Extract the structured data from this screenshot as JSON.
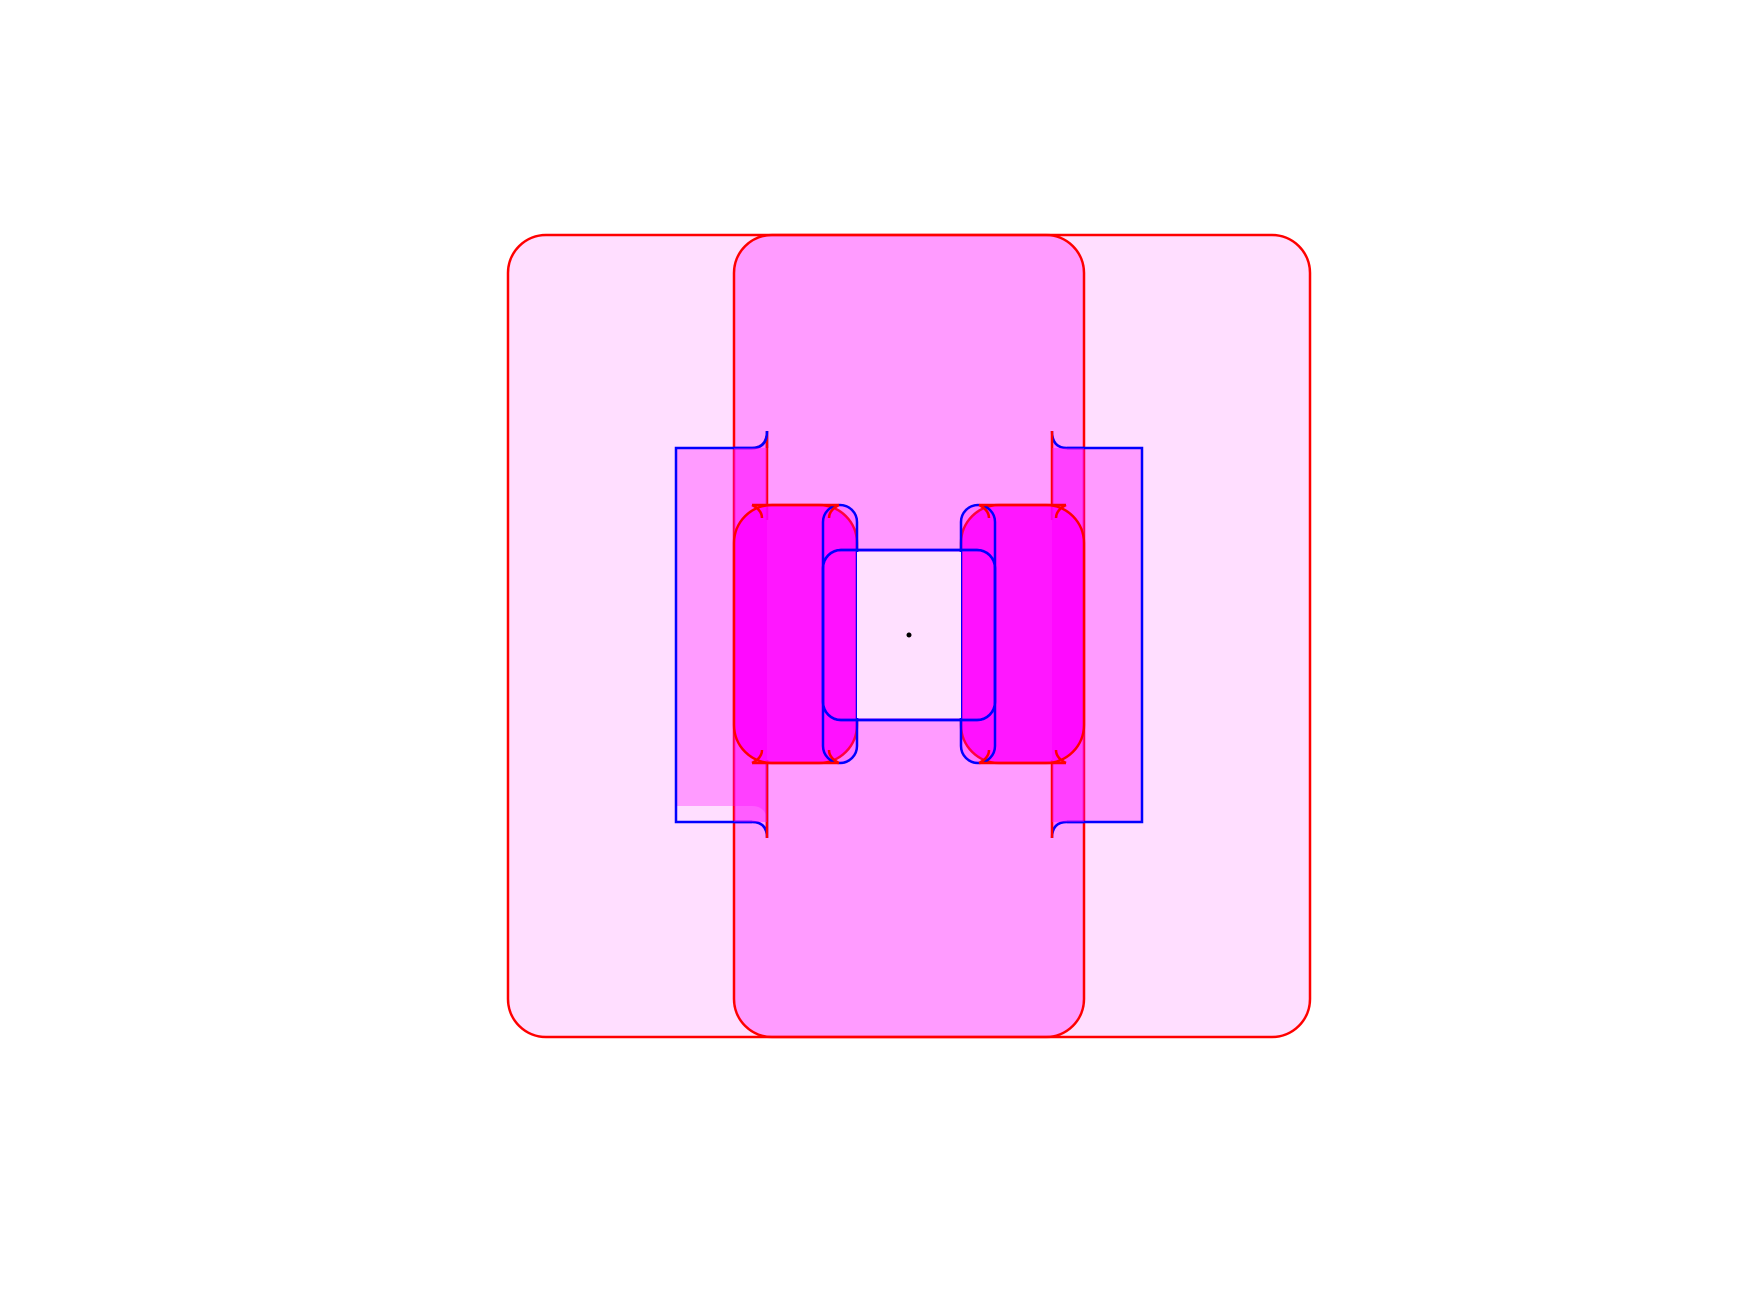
{
  "colors": {
    "background": "#ffffff",
    "red_stroke": "#ff0000",
    "blue_stroke": "#0000ff",
    "fill_light": "#ff00ff",
    "center_point": "#000000"
  },
  "shapes": [
    {
      "id": "outer-region",
      "kind": "rounded-rect",
      "stroke": "red"
    },
    {
      "id": "middle-column-region",
      "kind": "rounded-rect",
      "stroke": "red"
    },
    {
      "id": "left-bracket-region",
      "kind": "bracket",
      "stroke": "blue"
    },
    {
      "id": "right-bracket-region",
      "kind": "bracket",
      "stroke": "blue"
    },
    {
      "id": "left-inner-pad",
      "kind": "rounded-rect",
      "stroke": "red"
    },
    {
      "id": "right-inner-pad",
      "kind": "rounded-rect",
      "stroke": "red"
    },
    {
      "id": "center-square",
      "kind": "rounded-rect",
      "stroke": "blue"
    },
    {
      "id": "center-point",
      "kind": "point"
    }
  ]
}
